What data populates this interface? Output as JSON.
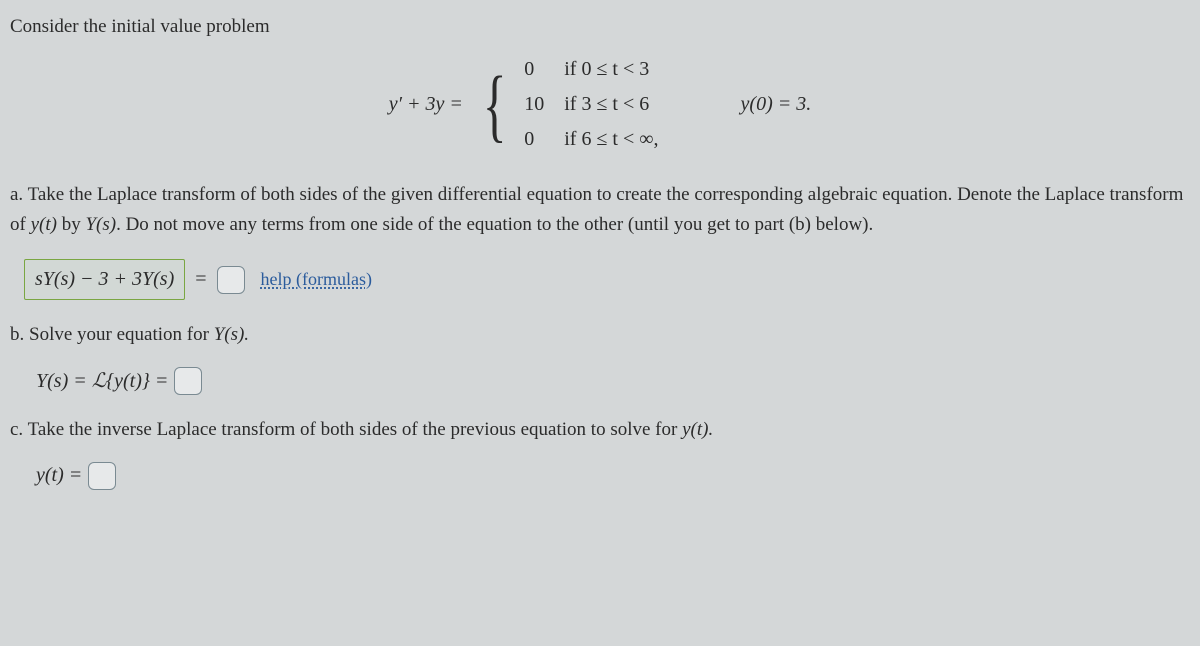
{
  "intro": "Consider the initial value problem",
  "eq": {
    "lhs": "y′ + 3y =",
    "cases": [
      {
        "val": "0",
        "cond": "if 0 ≤ t < 3"
      },
      {
        "val": "10",
        "cond": "if 3 ≤ t < 6"
      },
      {
        "val": "0",
        "cond": "if 6 ≤ t < ∞,"
      }
    ],
    "ic": "y(0) = 3."
  },
  "partA": {
    "label": "a. Take the Laplace transform of both sides of the given differential equation to create the corresponding algebraic equation. Denote the Laplace transform of ",
    "yt": "y(t)",
    "by": " by ",
    "Ys": "Y(s)",
    "rest": ". Do not move any terms from one side of the equation to the other (until you get to part (b) below).",
    "lhs_formula": "sY(s) − 3 + 3Y(s)",
    "help": "help (formulas)"
  },
  "partB": {
    "label": "b. Solve your equation for ",
    "Ys": "Y(s).",
    "eq": "Y(s) = ℒ{y(t)} ="
  },
  "partC": {
    "label": "c. Take the inverse Laplace transform of both sides of the previous equation to solve for ",
    "yt": "y(t).",
    "eq": "y(t) ="
  },
  "style": {
    "background": "#d4d7d8",
    "text_color": "#2b2b2b",
    "formula_border": "#7aa642",
    "input_border": "#7a8a92",
    "link_color": "#2a5b9c",
    "base_fontsize": 19,
    "math_fontsize": 20
  }
}
